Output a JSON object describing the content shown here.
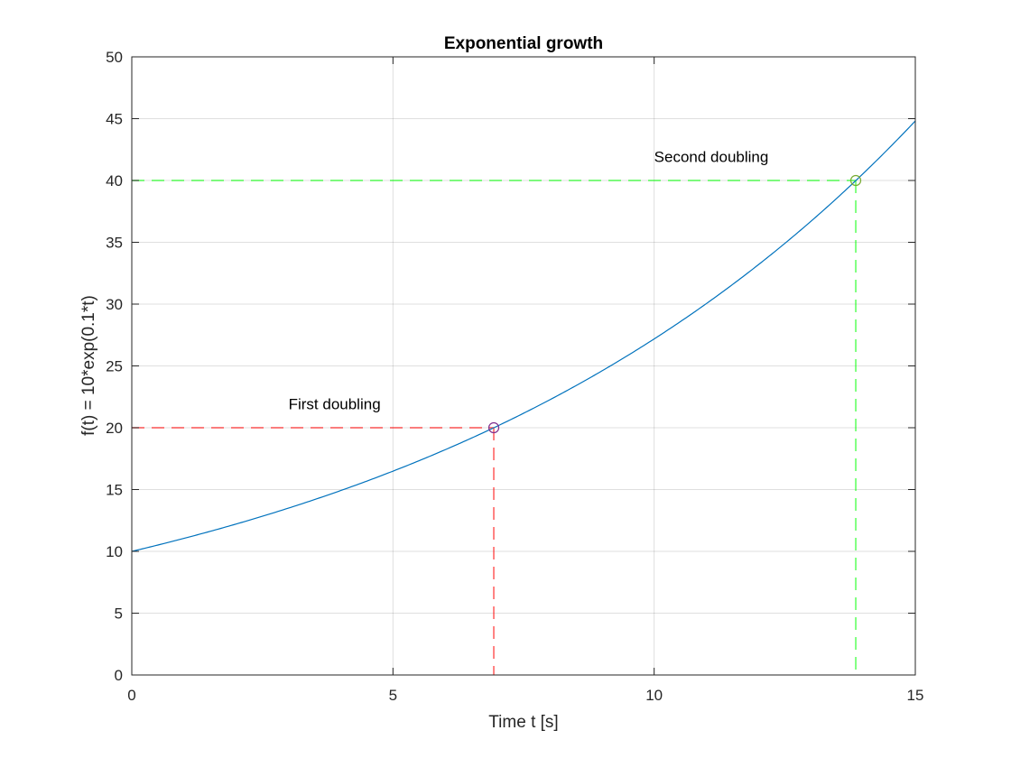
{
  "chart_data": {
    "type": "line",
    "title": "Exponential growth",
    "xlabel": "Time t [s]",
    "ylabel": "f(t) = 10*exp(0.1*t)",
    "xlim": [
      0,
      15
    ],
    "ylim": [
      0,
      50
    ],
    "xticks": [
      0,
      5,
      10,
      15
    ],
    "yticks": [
      0,
      5,
      10,
      15,
      20,
      25,
      30,
      35,
      40,
      45,
      50
    ],
    "grid": true,
    "series": [
      {
        "color": "#0072BD",
        "function": "10*exp(0.1*t)",
        "x": [
          0,
          1,
          2,
          3,
          4,
          5,
          6,
          7,
          8,
          9,
          10,
          11,
          12,
          13,
          14,
          15
        ],
        "y": [
          10,
          11.05,
          12.21,
          13.5,
          14.92,
          16.49,
          18.22,
          20.14,
          22.26,
          24.6,
          27.18,
          30.04,
          33.2,
          36.69,
          40.55,
          44.82
        ]
      }
    ],
    "markers": [
      {
        "x": 6.93,
        "y": 20,
        "color": "#7E2F8E"
      },
      {
        "x": 13.86,
        "y": 40,
        "color": "#77AC30"
      }
    ],
    "reference_lines": [
      {
        "x": 6.93,
        "y": 20,
        "color": "#FF0000"
      },
      {
        "x": 13.86,
        "y": 40,
        "color": "#00FF00"
      }
    ],
    "annotations": [
      {
        "text": "First doubling",
        "x": 3,
        "y": 21.5
      },
      {
        "text": "Second doubling",
        "x": 10,
        "y": 41.5
      }
    ]
  }
}
